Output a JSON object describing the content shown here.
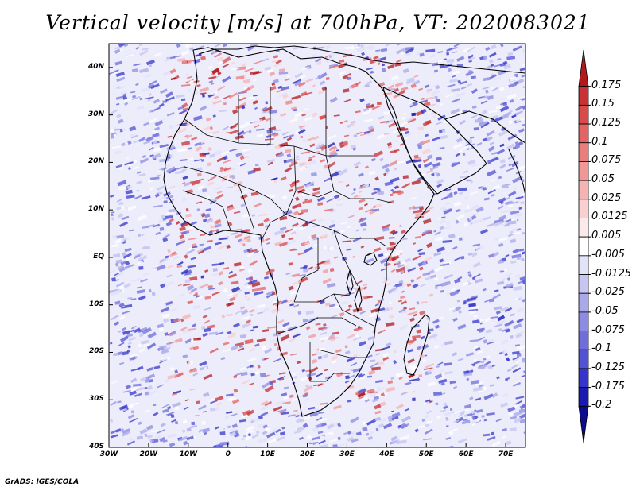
{
  "title": "Vertical velocity [m/s] at 700hPa, VT: 2020083021",
  "footer": "GrADS: IGES/COLA",
  "map": {
    "lat_labels": [
      "40N",
      "30N",
      "20N",
      "10N",
      "EQ",
      "10S",
      "20S",
      "30S",
      "40S"
    ],
    "lon_labels": [
      "30W",
      "20W",
      "10W",
      "0",
      "10E",
      "20E",
      "30E",
      "40E",
      "50E",
      "60E",
      "70E"
    ],
    "lat_range": [
      -40,
      45
    ],
    "lon_range": [
      -30,
      75
    ]
  },
  "colorbar": {
    "labels": [
      "0.175",
      "0.15",
      "0.125",
      "0.1",
      "0.075",
      "0.05",
      "0.025",
      "0.0125",
      "0.005",
      "-0.005",
      "-0.0125",
      "-0.025",
      "-0.05",
      "-0.075",
      "-0.1",
      "-0.125",
      "-0.175",
      "-0.2"
    ],
    "colors": [
      "#b11a1c",
      "#c83234",
      "#d94b4b",
      "#e46464",
      "#ec7d7d",
      "#f29797",
      "#f6b3b3",
      "#f9cfcf",
      "#fce9e9",
      "#ffffff",
      "#e2e2f8",
      "#c6c6f1",
      "#a9a9ea",
      "#8c8ce2",
      "#6f6fdb",
      "#5252d3",
      "#3535cc",
      "#1a1ab0",
      "#0c0c8c"
    ]
  }
}
